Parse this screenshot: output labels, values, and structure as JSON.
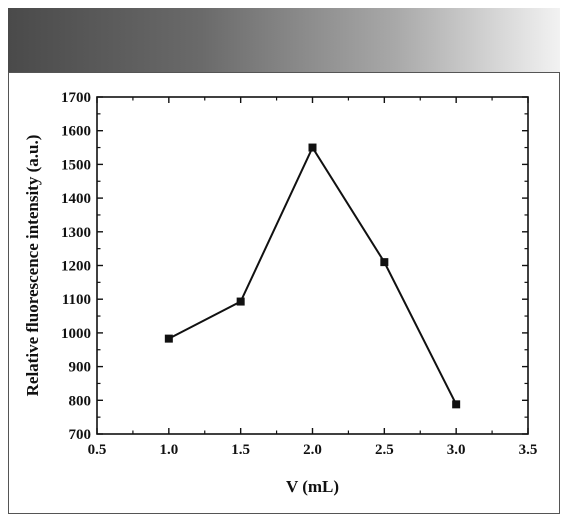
{
  "colors": {
    "line": "#111111",
    "marker": "#111111",
    "axis": "#111111"
  },
  "chart_data": {
    "type": "line",
    "title": "",
    "xlabel": "V (mL)",
    "ylabel": "Relative fluorescence intensity (a.u.)",
    "xlim": [
      0.5,
      3.5
    ],
    "ylim": [
      700,
      1700
    ],
    "xticks": [
      0.5,
      1.0,
      1.5,
      2.0,
      2.5,
      3.0,
      3.5
    ],
    "xtick_labels": [
      "0.5",
      "1.0",
      "1.5",
      "2.0",
      "2.5",
      "3.0",
      "3.5"
    ],
    "yticks": [
      700,
      800,
      900,
      1000,
      1100,
      1200,
      1300,
      1400,
      1500,
      1600,
      1700
    ],
    "ytick_labels": [
      "700",
      "800",
      "900",
      "1000",
      "1100",
      "1200",
      "1300",
      "1400",
      "1500",
      "1600",
      "1700"
    ],
    "grid": false,
    "series": [
      {
        "marker": "square",
        "x": [
          1.0,
          1.5,
          2.0,
          2.5,
          3.0
        ],
        "y": [
          983,
          1093,
          1550,
          1210,
          788
        ]
      }
    ]
  }
}
